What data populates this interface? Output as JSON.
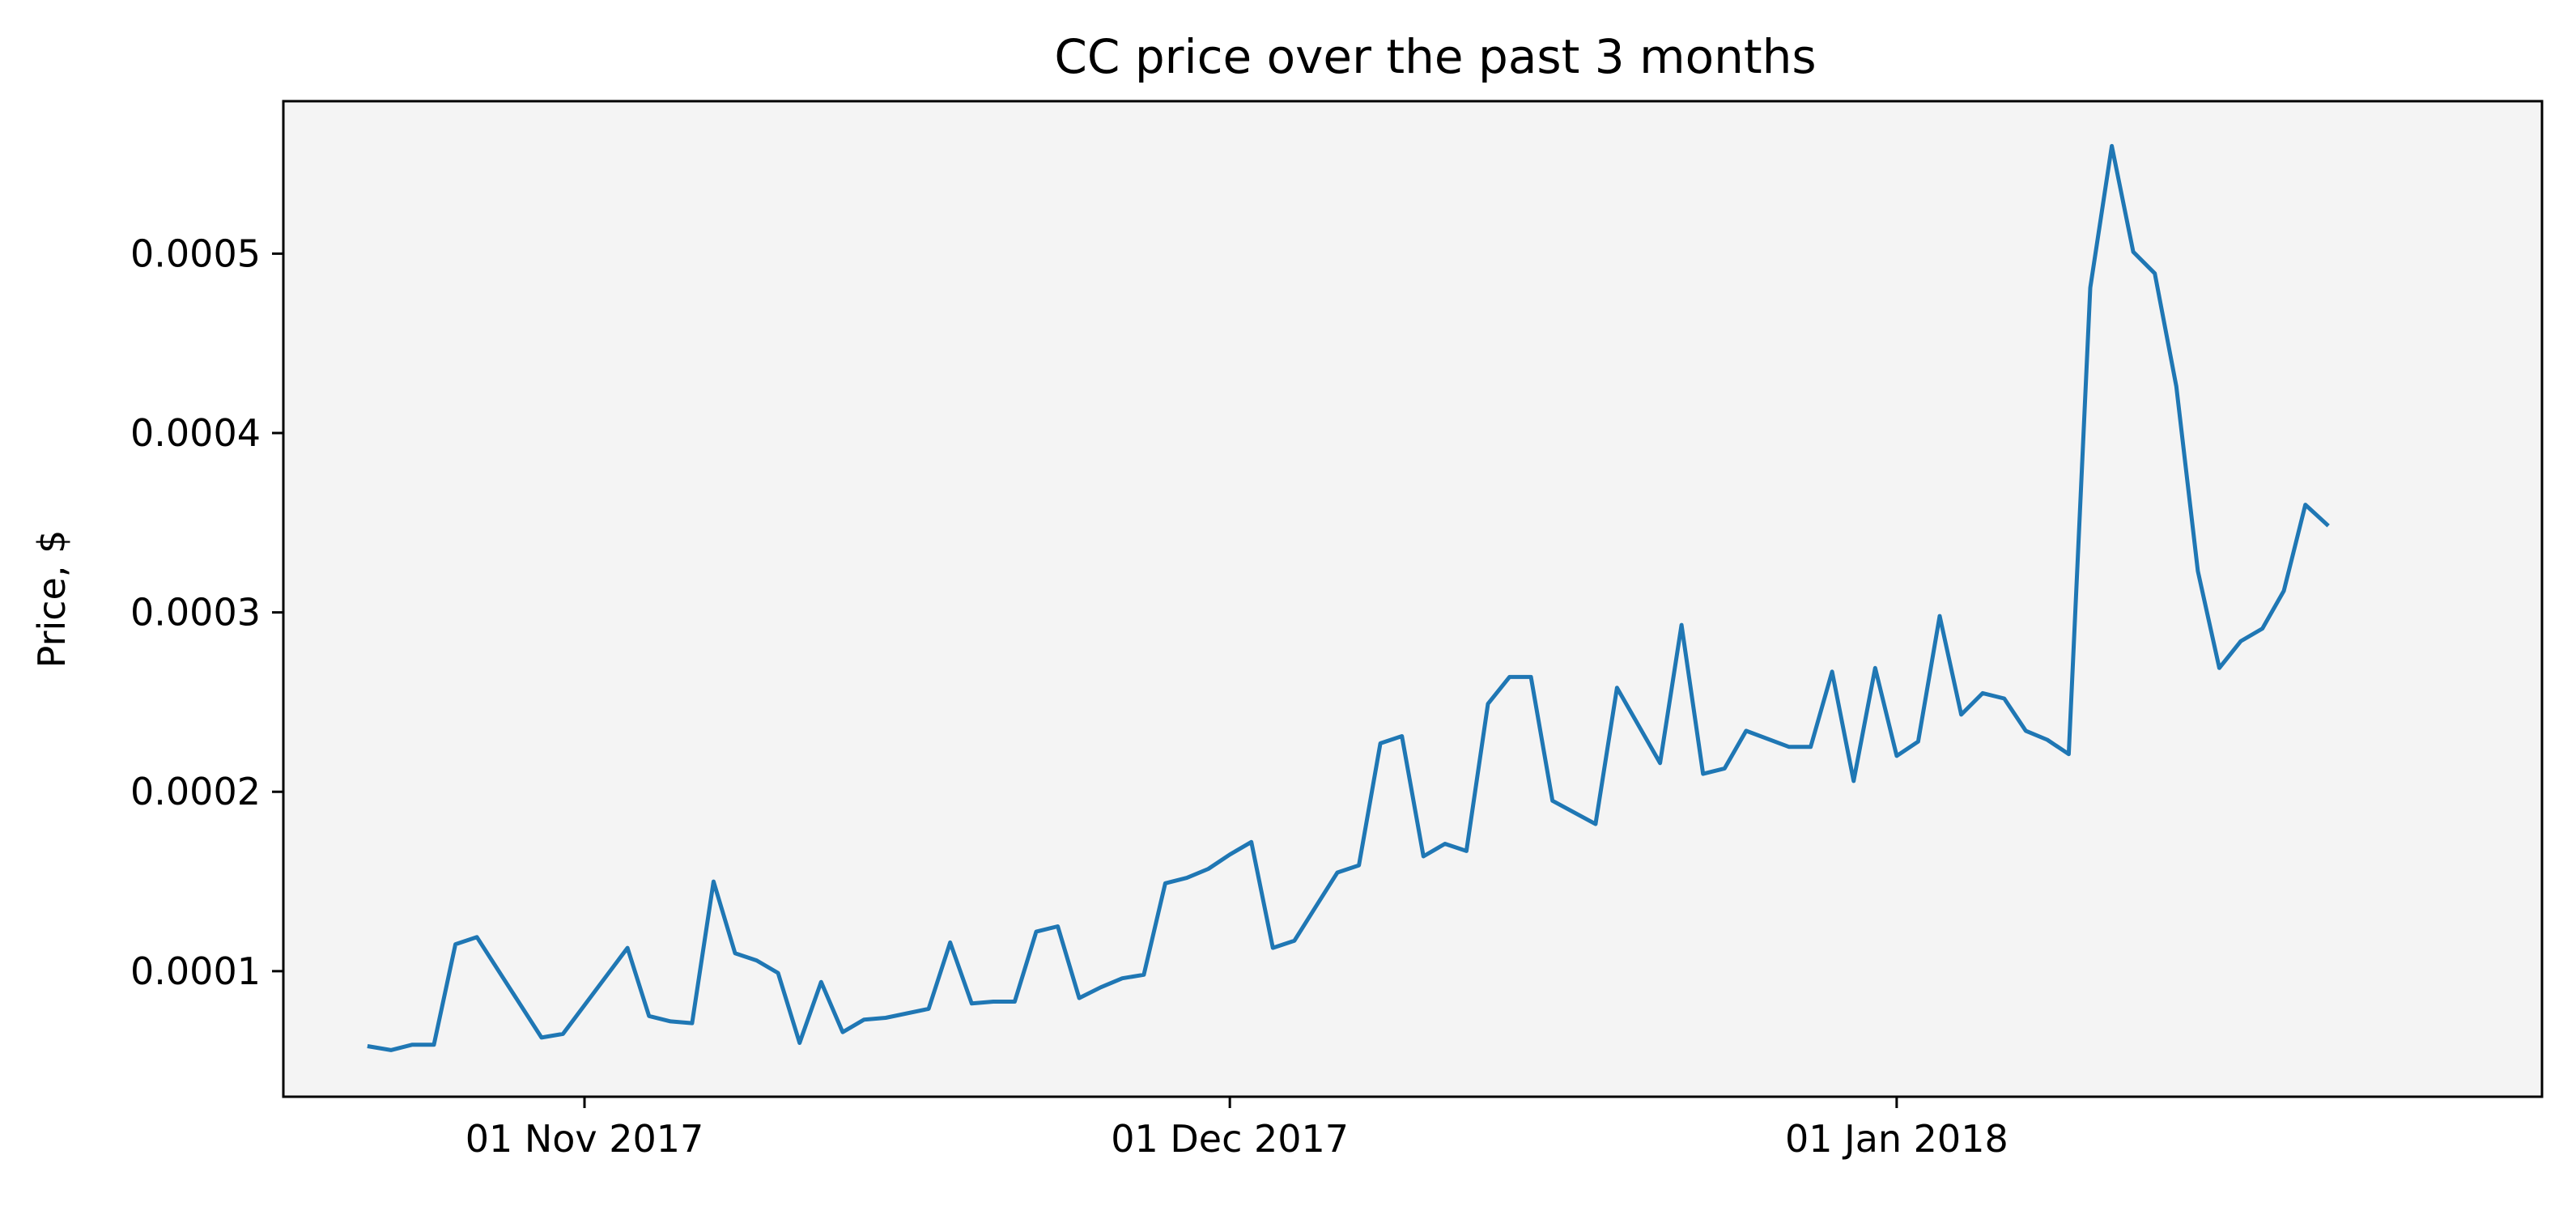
{
  "chart_data": {
    "type": "line",
    "title": "CC price over the past 3 months",
    "xlabel": "",
    "ylabel": "Price, $",
    "grid": false,
    "colors": {
      "line": "#1f77b4",
      "plot_background": "#f4f4f4",
      "axes": "#000000"
    },
    "xlim": [
      "2017-10-18",
      "2018-01-31"
    ],
    "ylim": [
      3e-05,
      0.000585
    ],
    "x_ticks": [
      {
        "date": "2017-11-01",
        "label": "01 Nov 2017"
      },
      {
        "date": "2017-12-01",
        "label": "01 Dec 2017"
      },
      {
        "date": "2018-01-01",
        "label": "01 Jan 2018"
      }
    ],
    "y_ticks": [
      {
        "value": 0.0001,
        "label": "0.0001"
      },
      {
        "value": 0.0002,
        "label": "0.0002"
      },
      {
        "value": 0.0003,
        "label": "0.0003"
      },
      {
        "value": 0.0004,
        "label": "0.0004"
      },
      {
        "value": 0.0005,
        "label": "0.0005"
      }
    ],
    "series": [
      {
        "points": [
          [
            "2017-10-22",
            5.8e-05
          ],
          [
            "2017-10-23",
            5.6e-05
          ],
          [
            "2017-10-24",
            5.9e-05
          ],
          [
            "2017-10-25",
            5.9e-05
          ],
          [
            "2017-10-26",
            0.000115
          ],
          [
            "2017-10-27",
            0.000119
          ],
          [
            "2017-10-30",
            6.3e-05
          ],
          [
            "2017-10-31",
            6.5e-05
          ],
          [
            "2017-11-03",
            0.000113
          ],
          [
            "2017-11-04",
            7.5e-05
          ],
          [
            "2017-11-05",
            7.2e-05
          ],
          [
            "2017-11-06",
            7.1e-05
          ],
          [
            "2017-11-07",
            0.00015
          ],
          [
            "2017-11-08",
            0.00011
          ],
          [
            "2017-11-09",
            0.000106
          ],
          [
            "2017-11-10",
            9.9e-05
          ],
          [
            "2017-11-11",
            6e-05
          ],
          [
            "2017-11-12",
            9.4e-05
          ],
          [
            "2017-11-13",
            6.6e-05
          ],
          [
            "2017-11-14",
            7.3e-05
          ],
          [
            "2017-11-15",
            7.4e-05
          ],
          [
            "2017-11-17",
            7.9e-05
          ],
          [
            "2017-11-18",
            0.000116
          ],
          [
            "2017-11-19",
            8.2e-05
          ],
          [
            "2017-11-20",
            8.3e-05
          ],
          [
            "2017-11-21",
            8.3e-05
          ],
          [
            "2017-11-22",
            0.000122
          ],
          [
            "2017-11-23",
            0.000125
          ],
          [
            "2017-11-24",
            8.5e-05
          ],
          [
            "2017-11-25",
            9.1e-05
          ],
          [
            "2017-11-26",
            9.6e-05
          ],
          [
            "2017-11-27",
            9.8e-05
          ],
          [
            "2017-11-28",
            0.000149
          ],
          [
            "2017-11-29",
            0.000152
          ],
          [
            "2017-11-30",
            0.000157
          ],
          [
            "2017-12-01",
            0.000165
          ],
          [
            "2017-12-02",
            0.000172
          ],
          [
            "2017-12-03",
            0.000113
          ],
          [
            "2017-12-04",
            0.000117
          ],
          [
            "2017-12-05",
            0.000136
          ],
          [
            "2017-12-06",
            0.000155
          ],
          [
            "2017-12-07",
            0.000159
          ],
          [
            "2017-12-08",
            0.000227
          ],
          [
            "2017-12-09",
            0.000231
          ],
          [
            "2017-12-10",
            0.000164
          ],
          [
            "2017-12-11",
            0.000171
          ],
          [
            "2017-12-12",
            0.000167
          ],
          [
            "2017-12-13",
            0.000249
          ],
          [
            "2017-12-14",
            0.000264
          ],
          [
            "2017-12-15",
            0.000264
          ],
          [
            "2017-12-16",
            0.000195
          ],
          [
            "2017-12-18",
            0.000182
          ],
          [
            "2017-12-19",
            0.000258
          ],
          [
            "2017-12-21",
            0.000216
          ],
          [
            "2017-12-22",
            0.000293
          ],
          [
            "2017-12-23",
            0.00021
          ],
          [
            "2017-12-24",
            0.000213
          ],
          [
            "2017-12-25",
            0.000234
          ],
          [
            "2017-12-27",
            0.000225
          ],
          [
            "2017-12-28",
            0.000225
          ],
          [
            "2017-12-29",
            0.000267
          ],
          [
            "2017-12-30",
            0.000206
          ],
          [
            "2017-12-31",
            0.000269
          ],
          [
            "2018-01-01",
            0.00022
          ],
          [
            "2018-01-02",
            0.000228
          ],
          [
            "2018-01-03",
            0.000298
          ],
          [
            "2018-01-04",
            0.000243
          ],
          [
            "2018-01-05",
            0.000255
          ],
          [
            "2018-01-06",
            0.000252
          ],
          [
            "2018-01-07",
            0.000234
          ],
          [
            "2018-01-08",
            0.000229
          ],
          [
            "2018-01-09",
            0.000221
          ],
          [
            "2018-01-10",
            0.000481
          ],
          [
            "2018-01-11",
            0.00056
          ],
          [
            "2018-01-12",
            0.000501
          ],
          [
            "2018-01-13",
            0.000489
          ],
          [
            "2018-01-14",
            0.000426
          ],
          [
            "2018-01-15",
            0.000323
          ],
          [
            "2018-01-16",
            0.000269
          ],
          [
            "2018-01-17",
            0.000284
          ],
          [
            "2018-01-18",
            0.000291
          ],
          [
            "2018-01-19",
            0.000312
          ],
          [
            "2018-01-20",
            0.00036
          ],
          [
            "2018-01-21",
            0.000349
          ]
        ]
      }
    ]
  }
}
